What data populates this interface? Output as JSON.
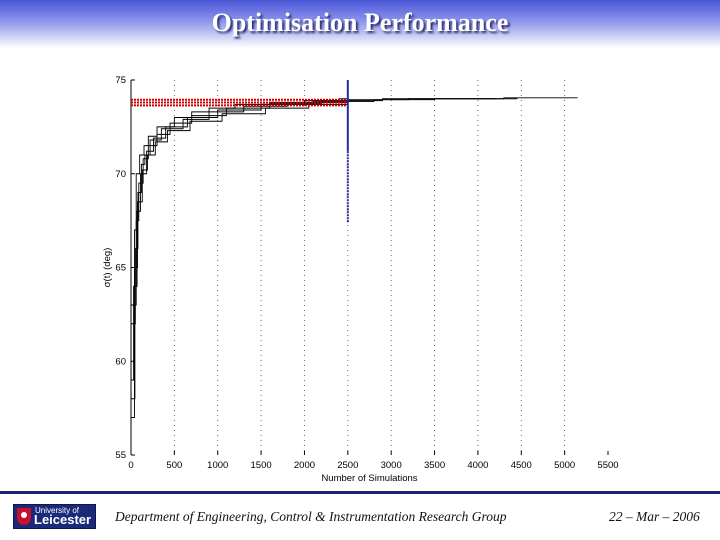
{
  "slide": {
    "title": "Optimisation Performance",
    "footer_left": "Department of Engineering, Control & Instrumentation Research Group",
    "footer_right": "22 – Mar – 2006",
    "logo_line1": "University of",
    "logo_line2": "Leicester"
  },
  "chart_data": {
    "type": "line",
    "title": "",
    "xlabel": "Number of Simulations",
    "ylabel": "σ(t) (deg)",
    "xlim": [
      0,
      5500
    ],
    "ylim": [
      55,
      75
    ],
    "xticks": [
      0,
      500,
      1000,
      1500,
      2000,
      2500,
      3000,
      3500,
      4000,
      4500,
      5000,
      5500
    ],
    "yticks": [
      55,
      60,
      65,
      70,
      75
    ],
    "grid": "dotted vertical lines",
    "series": [
      {
        "color": "#000000",
        "x": [
          0,
          40,
          60,
          100,
          150,
          200,
          300,
          500,
          700,
          900,
          1200,
          1600,
          2000,
          2400,
          2500
        ],
        "y": [
          57,
          67,
          70,
          71,
          71.5,
          72,
          72.5,
          73,
          73.3,
          73.5,
          73.7,
          73.8,
          73.9,
          74,
          74
        ]
      },
      {
        "color": "#000000",
        "x": [
          0,
          50,
          80,
          120,
          160,
          220,
          350,
          600,
          900,
          1300,
          1800,
          2500,
          3200,
          3800,
          4200
        ],
        "y": [
          62,
          66,
          69,
          70.5,
          71,
          71.8,
          72.4,
          72.9,
          73.3,
          73.6,
          73.8,
          73.95,
          74,
          74,
          74
        ]
      },
      {
        "color": "#000000",
        "x": [
          0,
          30,
          70,
          110,
          180,
          260,
          400,
          650,
          1000,
          1500,
          2100,
          2800,
          3500,
          4100,
          4450
        ],
        "y": [
          59,
          64,
          68,
          70,
          71.2,
          71.9,
          72.5,
          73,
          73.4,
          73.7,
          73.85,
          73.95,
          74,
          74,
          74.05
        ]
      },
      {
        "color": "#000000",
        "x": [
          0,
          60,
          90,
          140,
          200,
          300,
          450,
          700,
          1100,
          1600,
          2200,
          2900,
          3600,
          4300,
          5000,
          5150
        ],
        "y": [
          63,
          67.5,
          69.5,
          70.8,
          71.5,
          72.1,
          72.7,
          73.1,
          73.5,
          73.75,
          73.9,
          74,
          74,
          74.05,
          74.05,
          74.05
        ]
      },
      {
        "color": "#000000",
        "x": [
          0,
          45,
          75,
          130,
          190,
          280,
          420,
          680,
          1050,
          1550,
          2050,
          2500
        ],
        "y": [
          58,
          65,
          68.5,
          70.2,
          71,
          71.7,
          72.3,
          72.8,
          73.2,
          73.5,
          73.7,
          73.8
        ]
      }
    ],
    "reference_lines": [
      {
        "orientation": "horizontal",
        "y": 73.95,
        "x_range": [
          0,
          2500
        ],
        "color": "#cc0000",
        "style": "dotted"
      },
      {
        "orientation": "horizontal",
        "y": 73.8,
        "x_range": [
          0,
          2500
        ],
        "color": "#cc0000",
        "style": "dotted"
      },
      {
        "orientation": "horizontal",
        "y": 73.65,
        "x_range": [
          0,
          2500
        ],
        "color": "#cc0000",
        "style": "dotted"
      },
      {
        "orientation": "vertical",
        "x": 2500,
        "y_range": [
          71.2,
          75
        ],
        "color": "#2a2aa0",
        "style": "solid"
      },
      {
        "orientation": "vertical",
        "x": 2500,
        "y_range": [
          67.4,
          71.2
        ],
        "color": "#2a2aa0",
        "style": "dotted"
      }
    ]
  }
}
